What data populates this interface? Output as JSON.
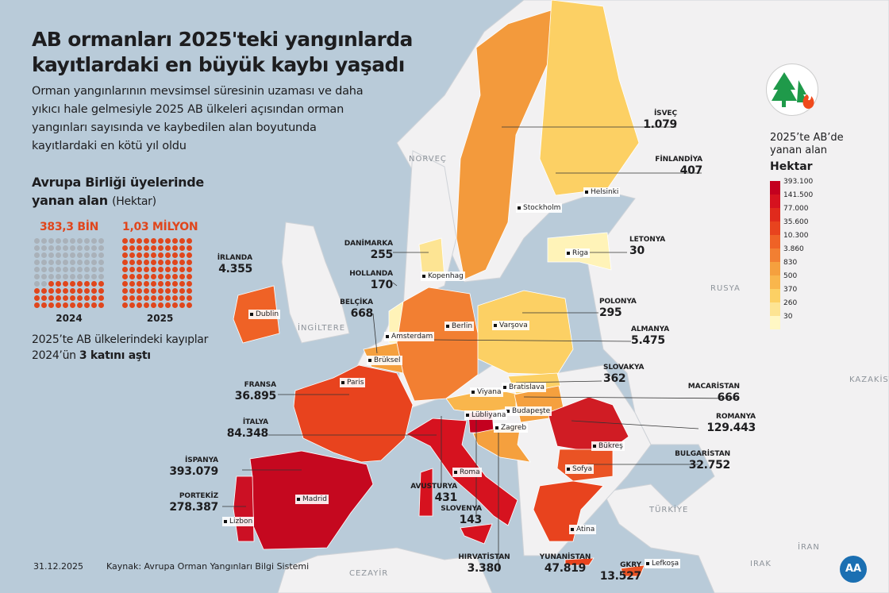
{
  "header": {
    "title_line1": "AB ormanları 2025'teki yangınlarda",
    "title_line2": "kayıtlardaki en büyük kaybı yaşadı",
    "subtitle": "Orman yangınlarının mevsimsel süresinin uzaması ve daha yıkıcı hale gelmesiyle 2025 AB ülkeleri açısından orman yangınları sayısında ve kaybedilen alan boyutunda kayıtlardaki en kötü yıl oldu"
  },
  "summary": {
    "heading_line1": "Avrupa Birliği üyelerinde",
    "heading_line2": "yanan alan",
    "unit": "(Hektar)",
    "y2024": {
      "value": "383,3 BİN",
      "year": "2024",
      "filled_dots": 38,
      "total_dots": 100
    },
    "y2025": {
      "value": "1,03 MİLYON",
      "year": "2025",
      "filled_dots": 100,
      "total_dots": 100
    },
    "note_line1": "2025’te AB ülkelerindeki kayıplar",
    "note_line2_pre": "2024’ün ",
    "note_line2_bold": "3 katını aştı"
  },
  "legend": {
    "title_line1": "2025’te AB’de",
    "title_line2": "yanan alan",
    "unit": "Hektar",
    "steps": [
      {
        "label": "393.100",
        "color": "#c4001f"
      },
      {
        "label": "141.500",
        "color": "#d6121f"
      },
      {
        "label": "77.000",
        "color": "#e02a1c"
      },
      {
        "label": "35.600",
        "color": "#e8431e"
      },
      {
        "label": "10.300",
        "color": "#ef6226"
      },
      {
        "label": "3.860",
        "color": "#f27f32"
      },
      {
        "label": "830",
        "color": "#f5a03e"
      },
      {
        "label": "500",
        "color": "#f9b64c"
      },
      {
        "label": "370",
        "color": "#fcd064"
      },
      {
        "label": "260",
        "color": "#fde493"
      },
      {
        "label": "30",
        "color": "#fff7c4"
      }
    ]
  },
  "countries": [
    {
      "name": "İSVEÇ",
      "value": "1.079"
    },
    {
      "name": "FİNLANDİYA",
      "value": "407"
    },
    {
      "name": "LETONYA",
      "value": "30"
    },
    {
      "name": "POLONYA",
      "value": "295"
    },
    {
      "name": "ALMANYA",
      "value": "5.475"
    },
    {
      "name": "SLOVAKYA",
      "value": "362"
    },
    {
      "name": "MACARİSTAN",
      "value": "666"
    },
    {
      "name": "ROMANYA",
      "value": "129.443"
    },
    {
      "name": "BULGARİSTAN",
      "value": "32.752"
    },
    {
      "name": "GKRY",
      "value": "13.527"
    },
    {
      "name": "YUNANİSTAN",
      "value": "47.819"
    },
    {
      "name": "HIRVATİSTAN",
      "value": "3.380"
    },
    {
      "name": "SLOVENYA",
      "value": "143"
    },
    {
      "name": "AVUSTURYA",
      "value": "431"
    },
    {
      "name": "PORTEKİZ",
      "value": "278.387"
    },
    {
      "name": "İSPANYA",
      "value": "393.079"
    },
    {
      "name": "İTALYA",
      "value": "84.348"
    },
    {
      "name": "FRANSA",
      "value": "36.895"
    },
    {
      "name": "BELÇİKA",
      "value": "668"
    },
    {
      "name": "HOLLANDA",
      "value": "170"
    },
    {
      "name": "DANİMARKA",
      "value": "255"
    },
    {
      "name": "İRLANDA",
      "value": "4.355"
    }
  ],
  "cities": [
    "Stockholm",
    "Helsinki",
    "Riga",
    "Kopenhag",
    "Dublin",
    "Amsterdam",
    "Berlin",
    "Varşova",
    "Brüksel",
    "Paris",
    "Viyana",
    "Bratislava",
    "Budapeşte",
    "Lübliyana",
    "Zagreb",
    "Roma",
    "Madrid",
    "Lizbon",
    "Bükreş",
    "Sofya",
    "Atina",
    "Lefkoşa"
  ],
  "regions": [
    "NORVEÇ",
    "İNGİLTERE",
    "RUSYA",
    "KAZAKİSTAN",
    "TÜRKİYE",
    "İRAN",
    "IRAK",
    "CEZAYİR"
  ],
  "footer": {
    "date": "31.12.2025",
    "source": "Kaynak: Avrupa Orman Yangınları Bilgi Sistemi",
    "agency": "AA"
  },
  "icons": {
    "badge": "tree-fire-icon"
  }
}
